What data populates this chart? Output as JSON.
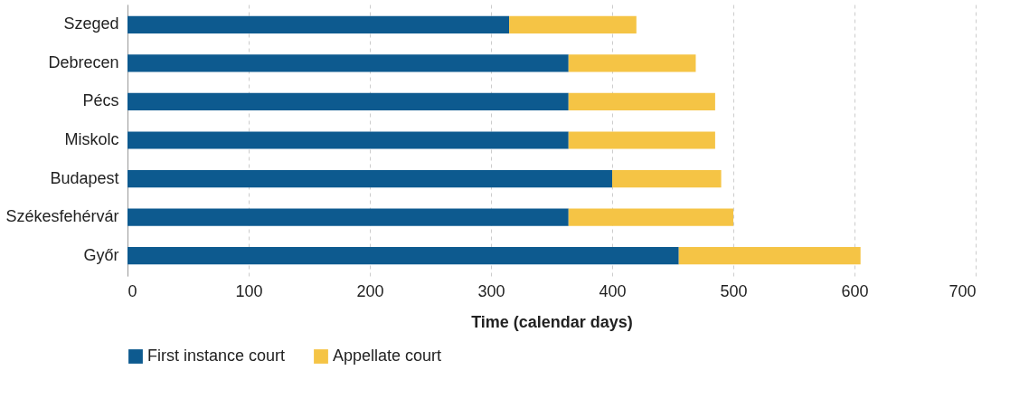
{
  "chart_data": {
    "type": "bar",
    "orientation": "horizontal",
    "stacked": true,
    "categories": [
      "Szeged",
      "Debrecen",
      "Pécs",
      "Miskolc",
      "Budapest",
      "Székesfehérvár",
      "Győr"
    ],
    "series": [
      {
        "name": "First instance court",
        "color": "#0d5a8f",
        "values": [
          315,
          364,
          364,
          364,
          400,
          364,
          455
        ]
      },
      {
        "name": "Appellate court",
        "color": "#f5c445",
        "values": [
          105,
          105,
          121,
          121,
          90,
          136,
          150
        ]
      }
    ],
    "xlabel": "Time (calendar days)",
    "xlim": [
      0,
      700
    ],
    "xticks": [
      0,
      100,
      200,
      300,
      400,
      500,
      600,
      700
    ],
    "grid": "x",
    "legend": "bottom"
  }
}
